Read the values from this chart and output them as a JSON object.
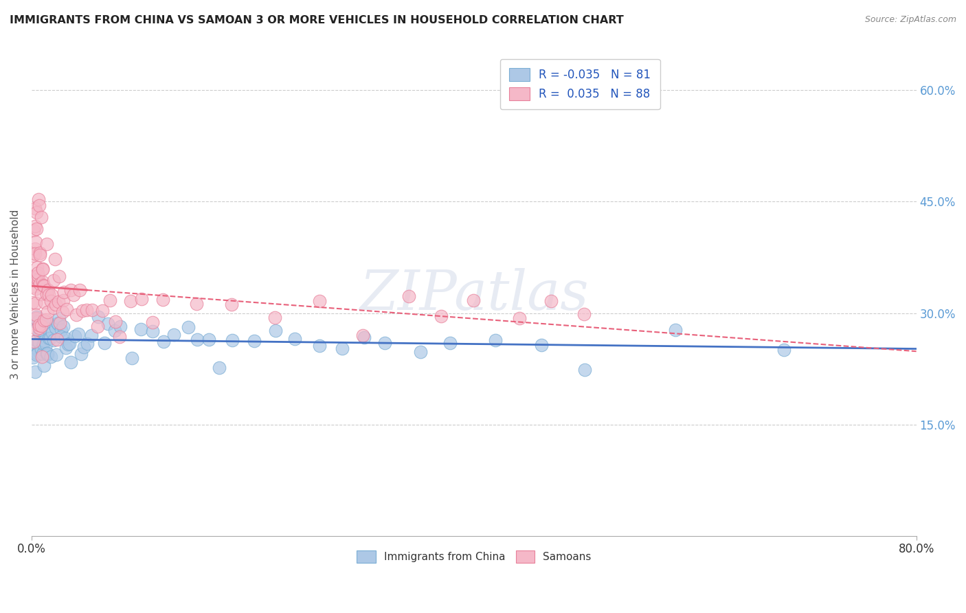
{
  "title": "IMMIGRANTS FROM CHINA VS SAMOAN 3 OR MORE VEHICLES IN HOUSEHOLD CORRELATION CHART",
  "source_text": "Source: ZipAtlas.com",
  "ylabel": "3 or more Vehicles in Household",
  "y_ticks": [
    0.15,
    0.3,
    0.45,
    0.6
  ],
  "xlim": [
    0.0,
    0.8
  ],
  "ylim": [
    0.0,
    0.65
  ],
  "legend_labels": [
    "Immigrants from China",
    "Samoans"
  ],
  "legend_R": [
    -0.035,
    0.035
  ],
  "legend_N": [
    81,
    88
  ],
  "blue_dot_color": "#adc8e6",
  "blue_edge_color": "#7aadd4",
  "pink_dot_color": "#f5b8c8",
  "pink_edge_color": "#e8809a",
  "blue_line_color": "#4472c4",
  "pink_line_color": "#e8607a",
  "watermark": "ZIPatlas",
  "china_dots_x": [
    0.001,
    0.002,
    0.002,
    0.003,
    0.003,
    0.004,
    0.004,
    0.005,
    0.005,
    0.006,
    0.006,
    0.007,
    0.007,
    0.008,
    0.008,
    0.009,
    0.009,
    0.01,
    0.01,
    0.011,
    0.011,
    0.012,
    0.012,
    0.013,
    0.013,
    0.014,
    0.015,
    0.015,
    0.016,
    0.017,
    0.018,
    0.019,
    0.02,
    0.021,
    0.022,
    0.023,
    0.024,
    0.025,
    0.026,
    0.027,
    0.028,
    0.029,
    0.03,
    0.032,
    0.034,
    0.036,
    0.038,
    0.04,
    0.043,
    0.046,
    0.05,
    0.055,
    0.06,
    0.065,
    0.07,
    0.075,
    0.08,
    0.09,
    0.1,
    0.11,
    0.12,
    0.13,
    0.14,
    0.15,
    0.16,
    0.17,
    0.18,
    0.2,
    0.22,
    0.24,
    0.26,
    0.28,
    0.3,
    0.32,
    0.35,
    0.38,
    0.42,
    0.46,
    0.5,
    0.58,
    0.68
  ],
  "china_dots_y": [
    0.25,
    0.26,
    0.27,
    0.24,
    0.28,
    0.255,
    0.275,
    0.26,
    0.27,
    0.25,
    0.265,
    0.28,
    0.255,
    0.27,
    0.245,
    0.275,
    0.26,
    0.265,
    0.28,
    0.255,
    0.27,
    0.26,
    0.245,
    0.275,
    0.265,
    0.255,
    0.27,
    0.28,
    0.26,
    0.25,
    0.265,
    0.275,
    0.26,
    0.27,
    0.255,
    0.265,
    0.275,
    0.28,
    0.26,
    0.27,
    0.255,
    0.265,
    0.275,
    0.26,
    0.27,
    0.255,
    0.265,
    0.28,
    0.26,
    0.27,
    0.255,
    0.265,
    0.275,
    0.26,
    0.27,
    0.255,
    0.265,
    0.275,
    0.26,
    0.27,
    0.255,
    0.265,
    0.275,
    0.26,
    0.27,
    0.255,
    0.265,
    0.275,
    0.26,
    0.27,
    0.255,
    0.265,
    0.275,
    0.26,
    0.27,
    0.255,
    0.265,
    0.275,
    0.26,
    0.27,
    0.255
  ],
  "samoan_dots_x": [
    0.001,
    0.001,
    0.001,
    0.002,
    0.002,
    0.002,
    0.002,
    0.003,
    0.003,
    0.003,
    0.003,
    0.003,
    0.004,
    0.004,
    0.004,
    0.004,
    0.005,
    0.005,
    0.005,
    0.005,
    0.006,
    0.006,
    0.006,
    0.006,
    0.007,
    0.007,
    0.007,
    0.007,
    0.008,
    0.008,
    0.008,
    0.009,
    0.009,
    0.009,
    0.01,
    0.01,
    0.01,
    0.011,
    0.011,
    0.012,
    0.012,
    0.013,
    0.013,
    0.014,
    0.015,
    0.015,
    0.016,
    0.017,
    0.018,
    0.019,
    0.02,
    0.021,
    0.022,
    0.023,
    0.024,
    0.025,
    0.026,
    0.027,
    0.028,
    0.03,
    0.032,
    0.035,
    0.038,
    0.04,
    0.043,
    0.046,
    0.05,
    0.055,
    0.06,
    0.065,
    0.07,
    0.075,
    0.08,
    0.09,
    0.1,
    0.11,
    0.12,
    0.15,
    0.18,
    0.22,
    0.26,
    0.3,
    0.34,
    0.37,
    0.4,
    0.44,
    0.47,
    0.5
  ],
  "samoan_dots_y": [
    0.31,
    0.35,
    0.39,
    0.28,
    0.32,
    0.36,
    0.4,
    0.29,
    0.33,
    0.37,
    0.41,
    0.45,
    0.3,
    0.34,
    0.38,
    0.42,
    0.31,
    0.35,
    0.39,
    0.43,
    0.29,
    0.33,
    0.37,
    0.48,
    0.3,
    0.34,
    0.38,
    0.46,
    0.31,
    0.35,
    0.42,
    0.29,
    0.33,
    0.37,
    0.3,
    0.34,
    0.38,
    0.31,
    0.35,
    0.3,
    0.36,
    0.32,
    0.38,
    0.31,
    0.35,
    0.29,
    0.33,
    0.31,
    0.35,
    0.29,
    0.32,
    0.36,
    0.3,
    0.34,
    0.31,
    0.35,
    0.29,
    0.33,
    0.3,
    0.32,
    0.31,
    0.34,
    0.3,
    0.32,
    0.31,
    0.3,
    0.32,
    0.31,
    0.3,
    0.29,
    0.31,
    0.3,
    0.29,
    0.31,
    0.3,
    0.29,
    0.31,
    0.32,
    0.31,
    0.3,
    0.31,
    0.3,
    0.31,
    0.3,
    0.31,
    0.3,
    0.31,
    0.32
  ]
}
